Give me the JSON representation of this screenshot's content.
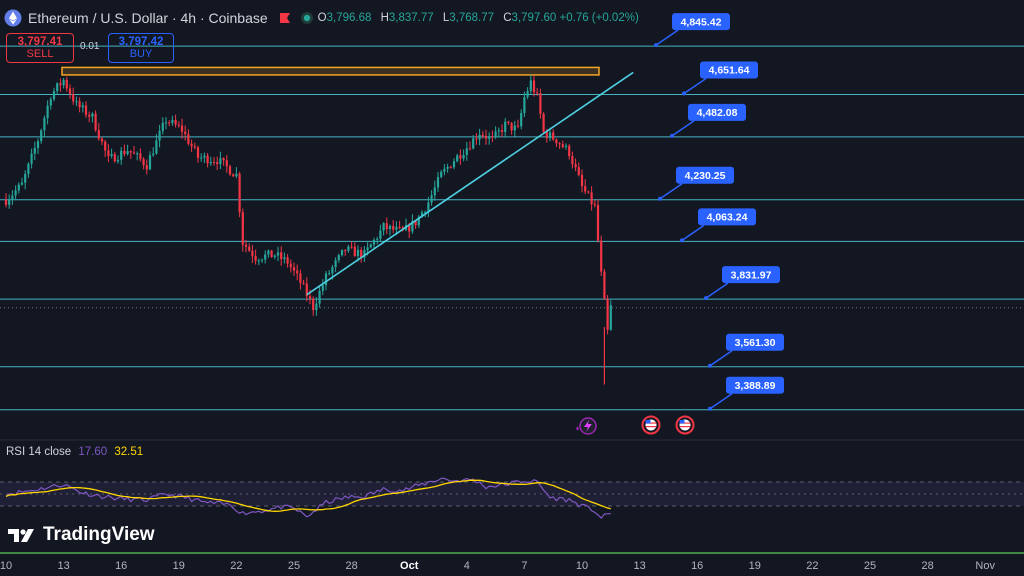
{
  "header": {
    "title": "Ethereum / U.S. Dollar · 4h · Coinbase",
    "ohlc": [
      {
        "k": "O",
        "v": "3,796.68"
      },
      {
        "k": "H",
        "v": "3,837.77"
      },
      {
        "k": "L",
        "v": "3,768.77"
      },
      {
        "k": "C",
        "v": "3,797.60 +0.76 (+0.02%)"
      }
    ]
  },
  "trade": {
    "sell_price": "3,797.41",
    "sell_label": "SELL",
    "spread": "0.01",
    "buy_price": "3,797.42",
    "buy_label": "BUY"
  },
  "rsi": {
    "label": "RSI 14 close",
    "value": "17.60",
    "ma_value": "32.51"
  },
  "brand": "TradingView",
  "colors": {
    "bg": "#131722",
    "up": "#26a69a",
    "down": "#f23645",
    "levels": "#4dd0e1",
    "callout": "#2962ff",
    "zone": "#f5a623",
    "rsi": "#7e57c2",
    "rsi_ma": "#ffd600"
  },
  "chart_data": {
    "type": "candlestick",
    "ylim": [
      3300,
      4950
    ],
    "x_ticks": [
      {
        "label": "10",
        "i": 0
      },
      {
        "label": "13",
        "i": 18
      },
      {
        "label": "16",
        "i": 36
      },
      {
        "label": "19",
        "i": 54
      },
      {
        "label": "22",
        "i": 72
      },
      {
        "label": "25",
        "i": 90
      },
      {
        "label": "28",
        "i": 108
      },
      {
        "label": "Oct",
        "i": 126,
        "bold": true
      },
      {
        "label": "4",
        "i": 144
      },
      {
        "label": "7",
        "i": 162
      },
      {
        "label": "10",
        "i": 180
      },
      {
        "label": "13",
        "i": 198
      },
      {
        "label": "16",
        "i": 216
      },
      {
        "label": "19",
        "i": 234
      },
      {
        "label": "22",
        "i": 252
      },
      {
        "label": "25",
        "i": 270
      },
      {
        "label": "28",
        "i": 288
      },
      {
        "label": "Nov",
        "i": 306
      }
    ],
    "levels": [
      {
        "label": "4,845.42",
        "value": 4845.42
      },
      {
        "label": "4,651.64",
        "value": 4651.64
      },
      {
        "label": "4,482.08",
        "value": 4482.08
      },
      {
        "label": "4,230.25",
        "value": 4230.25
      },
      {
        "label": "4,063.24",
        "value": 4063.24
      },
      {
        "label": "3,831.97",
        "value": 3831.97
      },
      {
        "label": "3,561.30",
        "value": 3561.3
      },
      {
        "label": "3,388.89",
        "value": 3388.89
      }
    ],
    "last_price": 3797.6,
    "resistance_zone": [
      4730,
      4760
    ],
    "trendline": [
      {
        "i": 94,
        "p": 3850
      },
      {
        "i": 196,
        "p": 4740
      }
    ],
    "anchors": [
      {
        "i": 0,
        "p": 4230
      },
      {
        "i": 5,
        "p": 4290
      },
      {
        "i": 10,
        "p": 4470
      },
      {
        "i": 14,
        "p": 4650
      },
      {
        "i": 18,
        "p": 4710
      },
      {
        "i": 22,
        "p": 4610
      },
      {
        "i": 27,
        "p": 4560
      },
      {
        "i": 32,
        "p": 4390
      },
      {
        "i": 38,
        "p": 4430
      },
      {
        "i": 44,
        "p": 4370
      },
      {
        "i": 50,
        "p": 4550
      },
      {
        "i": 55,
        "p": 4510
      },
      {
        "i": 60,
        "p": 4400
      },
      {
        "i": 66,
        "p": 4390
      },
      {
        "i": 72,
        "p": 4330
      },
      {
        "i": 74,
        "p": 4060
      },
      {
        "i": 78,
        "p": 4000
      },
      {
        "i": 84,
        "p": 4010
      },
      {
        "i": 88,
        "p": 3980
      },
      {
        "i": 92,
        "p": 3900
      },
      {
        "i": 96,
        "p": 3800
      },
      {
        "i": 100,
        "p": 3920
      },
      {
        "i": 106,
        "p": 4030
      },
      {
        "i": 112,
        "p": 4010
      },
      {
        "i": 118,
        "p": 4120
      },
      {
        "i": 124,
        "p": 4100
      },
      {
        "i": 128,
        "p": 4140
      },
      {
        "i": 132,
        "p": 4220
      },
      {
        "i": 136,
        "p": 4330
      },
      {
        "i": 140,
        "p": 4390
      },
      {
        "i": 144,
        "p": 4440
      },
      {
        "i": 148,
        "p": 4500
      },
      {
        "i": 152,
        "p": 4470
      },
      {
        "i": 156,
        "p": 4530
      },
      {
        "i": 160,
        "p": 4510
      },
      {
        "i": 162,
        "p": 4640
      },
      {
        "i": 164,
        "p": 4700
      },
      {
        "i": 166,
        "p": 4640
      },
      {
        "i": 168,
        "p": 4500
      },
      {
        "i": 172,
        "p": 4470
      },
      {
        "i": 176,
        "p": 4420
      },
      {
        "i": 180,
        "p": 4280
      },
      {
        "i": 184,
        "p": 4200
      },
      {
        "i": 186,
        "p": 3930
      },
      {
        "i": 188,
        "p": 3700
      },
      {
        "i": 189,
        "p": 3800
      }
    ],
    "rsi_ylim": [
      0,
      100
    ],
    "rsi_bands": [
      70,
      50,
      30
    ],
    "rsi_anchors": [
      {
        "i": 0,
        "r": 50
      },
      {
        "i": 8,
        "r": 56
      },
      {
        "i": 14,
        "r": 62
      },
      {
        "i": 18,
        "r": 66
      },
      {
        "i": 24,
        "r": 52
      },
      {
        "i": 30,
        "r": 46
      },
      {
        "i": 36,
        "r": 42
      },
      {
        "i": 44,
        "r": 40
      },
      {
        "i": 50,
        "r": 50
      },
      {
        "i": 56,
        "r": 44
      },
      {
        "i": 62,
        "r": 36
      },
      {
        "i": 70,
        "r": 32
      },
      {
        "i": 74,
        "r": 18
      },
      {
        "i": 80,
        "r": 22
      },
      {
        "i": 86,
        "r": 28
      },
      {
        "i": 90,
        "r": 26
      },
      {
        "i": 94,
        "r": 12
      },
      {
        "i": 100,
        "r": 36
      },
      {
        "i": 106,
        "r": 44
      },
      {
        "i": 112,
        "r": 46
      },
      {
        "i": 118,
        "r": 58
      },
      {
        "i": 124,
        "r": 56
      },
      {
        "i": 130,
        "r": 66
      },
      {
        "i": 136,
        "r": 76
      },
      {
        "i": 140,
        "r": 72
      },
      {
        "i": 146,
        "r": 74
      },
      {
        "i": 150,
        "r": 62
      },
      {
        "i": 156,
        "r": 66
      },
      {
        "i": 162,
        "r": 72
      },
      {
        "i": 166,
        "r": 70
      },
      {
        "i": 170,
        "r": 44
      },
      {
        "i": 176,
        "r": 40
      },
      {
        "i": 180,
        "r": 30
      },
      {
        "i": 184,
        "r": 22
      },
      {
        "i": 186,
        "r": 10
      },
      {
        "i": 189,
        "r": 17.6
      }
    ]
  }
}
